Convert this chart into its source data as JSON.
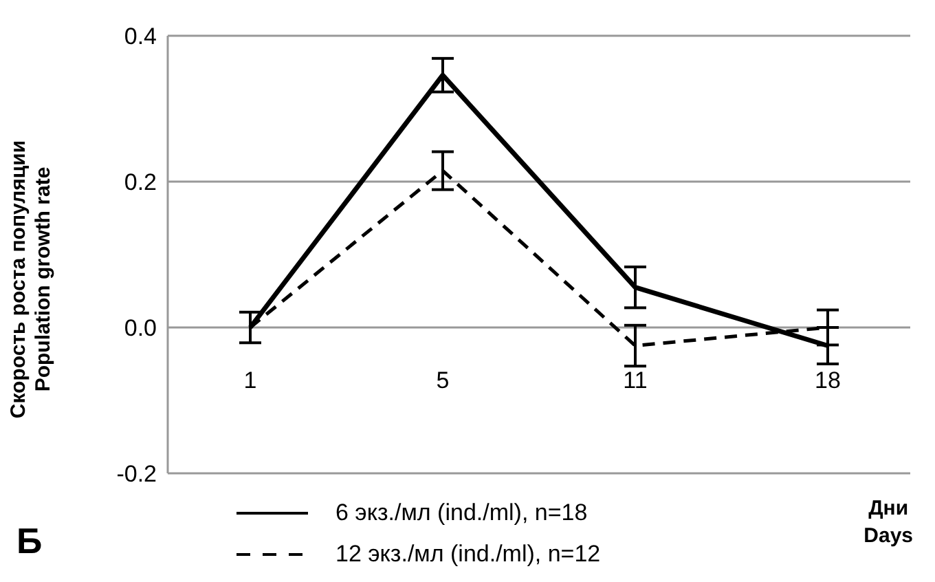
{
  "chart_data": {
    "type": "line",
    "categories": [
      "1",
      "5",
      "11",
      "18"
    ],
    "series": [
      {
        "name": "6 экз./мл (ind./ml), n=18",
        "color": "#000000",
        "line_style": "solid",
        "values": [
          0.0,
          0.346,
          0.055,
          -0.025
        ],
        "errors": [
          0.021,
          0.023,
          0.028,
          0.025
        ]
      },
      {
        "name": "12 экз./мл (ind./ml), n=12",
        "color": "#000000",
        "line_style": "dashed",
        "values": [
          0.0,
          0.215,
          -0.025,
          0.0
        ],
        "errors": [
          null,
          0.026,
          0.028,
          0.024
        ]
      }
    ],
    "ylim": [
      -0.2,
      0.4
    ],
    "yticks": [
      {
        "value": -0.2,
        "label": "-0.2"
      },
      {
        "value": 0,
        "label": "0.0"
      },
      {
        "value": 0.2,
        "label": "0.2"
      },
      {
        "value": 0.4,
        "label": "0.4"
      }
    ],
    "ylabel": "Скорость роста популяции\nPopulation growth rate",
    "xlabel": "Дни\nDays",
    "annotations": [
      "Б"
    ],
    "grid": "y",
    "legend": "bottom",
    "marker": "none"
  }
}
